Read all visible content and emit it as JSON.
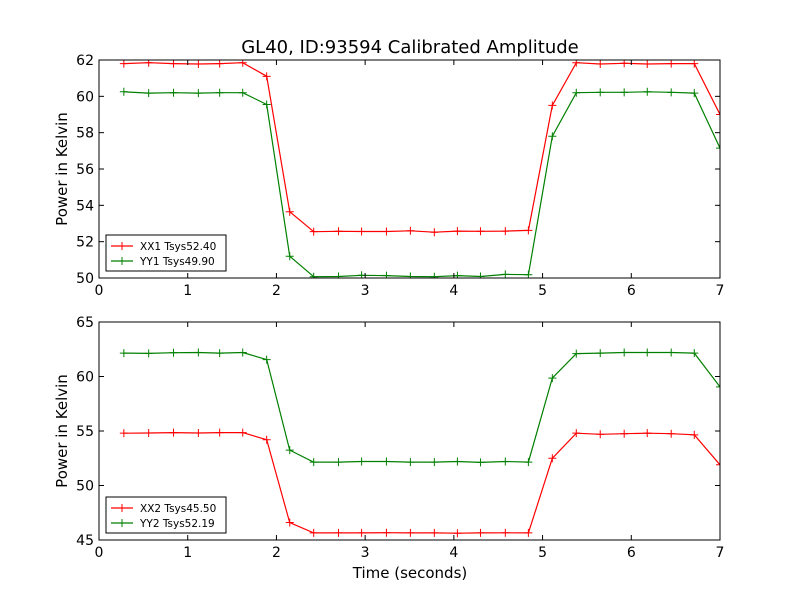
{
  "figure": {
    "title": "GL40, ID:93594 Calibrated Amplitude",
    "xlabel": "Time (seconds)"
  },
  "colors": {
    "red": "#ff0000",
    "green": "#008000",
    "axes": "#000000"
  },
  "chart_data": [
    {
      "type": "line",
      "title": "GL40, ID:93594 Calibrated Amplitude",
      "xlabel": "",
      "ylabel": "Power in Kelvin",
      "xlim": [
        0,
        7
      ],
      "ylim": [
        50,
        62
      ],
      "xticks": [
        "0",
        "1",
        "2",
        "3",
        "4",
        "5",
        "6",
        "7"
      ],
      "yticks": [
        "50",
        "52",
        "54",
        "56",
        "58",
        "60",
        "62"
      ],
      "legend_position": "lower-left",
      "x": [
        0.28,
        0.56,
        0.84,
        1.12,
        1.36,
        1.62,
        1.89,
        2.15,
        2.42,
        2.7,
        2.96,
        3.24,
        3.51,
        3.78,
        4.04,
        4.3,
        4.58,
        4.84,
        5.11,
        5.38,
        5.65,
        5.92,
        6.18,
        6.45,
        6.71,
        7.0
      ],
      "series": [
        {
          "name": "XX1 Tsys52.40",
          "color": "red",
          "values": [
            61.8,
            61.85,
            61.8,
            61.78,
            61.8,
            61.85,
            61.1,
            53.65,
            52.55,
            52.57,
            52.56,
            52.56,
            52.6,
            52.52,
            52.58,
            52.57,
            52.58,
            52.62,
            59.5,
            61.85,
            61.78,
            61.82,
            61.78,
            61.8,
            61.8,
            59.0
          ]
        },
        {
          "name": "YY1 Tsys49.90",
          "color": "green",
          "values": [
            60.25,
            60.18,
            60.2,
            60.18,
            60.2,
            60.2,
            59.55,
            51.2,
            50.07,
            50.08,
            50.15,
            50.13,
            50.08,
            50.07,
            50.13,
            50.08,
            50.2,
            50.18,
            57.8,
            60.2,
            60.22,
            60.22,
            60.25,
            60.22,
            60.18,
            57.15
          ]
        }
      ]
    },
    {
      "type": "line",
      "title": "",
      "xlabel": "Time (seconds)",
      "ylabel": "Power in Kelvin",
      "xlim": [
        0,
        7
      ],
      "ylim": [
        45,
        65
      ],
      "xticks": [
        "0",
        "1",
        "2",
        "3",
        "4",
        "5",
        "6",
        "7"
      ],
      "yticks": [
        "45",
        "50",
        "55",
        "60",
        "65"
      ],
      "legend_position": "lower-left",
      "x": [
        0.28,
        0.56,
        0.84,
        1.12,
        1.36,
        1.62,
        1.89,
        2.15,
        2.42,
        2.7,
        2.96,
        3.24,
        3.51,
        3.78,
        4.04,
        4.3,
        4.58,
        4.84,
        5.11,
        5.38,
        5.65,
        5.92,
        6.18,
        6.45,
        6.71,
        7.0
      ],
      "series": [
        {
          "name": "XX2 Tsys45.50",
          "color": "red",
          "values": [
            54.8,
            54.82,
            54.85,
            54.82,
            54.85,
            54.85,
            54.2,
            46.6,
            45.65,
            45.65,
            45.65,
            45.67,
            45.65,
            45.65,
            45.62,
            45.65,
            45.66,
            45.65,
            52.5,
            54.8,
            54.7,
            54.75,
            54.8,
            54.75,
            54.65,
            51.9
          ]
        },
        {
          "name": "YY2 Tsys52.19",
          "color": "green",
          "values": [
            62.15,
            62.12,
            62.18,
            62.2,
            62.15,
            62.2,
            61.55,
            53.25,
            52.15,
            52.15,
            52.2,
            52.2,
            52.15,
            52.15,
            52.2,
            52.12,
            52.2,
            52.15,
            59.85,
            62.1,
            62.15,
            62.2,
            62.2,
            62.2,
            62.15,
            59.05
          ]
        }
      ]
    }
  ]
}
